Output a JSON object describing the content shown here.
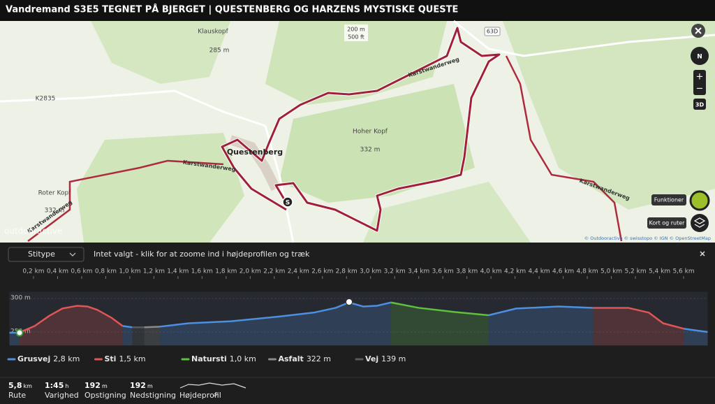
{
  "header": {
    "title": "Vandremand S3E5 TEGNET PÅ BJERGET | QUESTENBERG OG HARZENS MYSTISKE QUESTE"
  },
  "map": {
    "places": [
      "Klauskopf",
      "285 m",
      "Questenberg",
      "Hoher Kopf",
      "332 m",
      "Roter Kopf",
      "332 m"
    ],
    "trails": [
      "Karstwanderweg",
      "Karstwanderweg",
      "Karstwanderweg",
      "Karstwanderweg"
    ],
    "roads": [
      "K2835",
      "63D"
    ],
    "scale": [
      "200 m",
      "500 ft"
    ],
    "watermark": "outdooractive",
    "attribution": "© Outdooractive © swisstopo © IGN © OpenStreetMap",
    "controls": {
      "compass": "N",
      "zoom_in": "+",
      "zoom_out": "−",
      "mode": "3D",
      "functions": "Funktioner",
      "layers": "Kort og ruter"
    }
  },
  "toolbar": {
    "filter": "Stitype",
    "hint": "Intet valgt - klik for at zoome ind i højdeprofilen og træk"
  },
  "chart_data": {
    "type": "area",
    "x": [
      0,
      0.08,
      0.21,
      0.33,
      0.44,
      0.56,
      0.65,
      0.73,
      0.85,
      0.94,
      1.02,
      1.12,
      1.25,
      1.49,
      1.84,
      2.24,
      2.53,
      2.71,
      2.82,
      2.94,
      3.05,
      3.17,
      3.4,
      3.69,
      3.98,
      4.21,
      4.56,
      4.85,
      5.14,
      5.31,
      5.43,
      5.6,
      5.72,
      5.8
    ],
    "series": [
      {
        "name": "Grusvej",
        "length": "2,8 km",
        "color": "#4d8fe0",
        "values": [
          249,
          249,
          null,
          null,
          null,
          null,
          null,
          null,
          null,
          259,
          257,
          null,
          258,
          263,
          266,
          273,
          279,
          286,
          294,
          288,
          289,
          294,
          null,
          null,
          275,
          285,
          288,
          286,
          null,
          null,
          null,
          255,
          252,
          250
        ]
      },
      {
        "name": "Sti",
        "length": "1,5 km",
        "color": "#e05555",
        "values": [
          null,
          249,
          259,
          274,
          285,
          289,
          288,
          283,
          271,
          259,
          null,
          null,
          null,
          null,
          null,
          null,
          null,
          null,
          null,
          null,
          null,
          null,
          null,
          null,
          null,
          null,
          null,
          286,
          286,
          279,
          263,
          255,
          null,
          null
        ]
      },
      {
        "name": "Natursti",
        "length": "1,0 km",
        "color": "#5fbf3f",
        "values": [
          null,
          null,
          null,
          null,
          null,
          null,
          null,
          null,
          null,
          null,
          null,
          null,
          null,
          null,
          null,
          null,
          null,
          null,
          null,
          null,
          null,
          294,
          286,
          280,
          275,
          null,
          null,
          null,
          null,
          null,
          null,
          null,
          null,
          null
        ]
      },
      {
        "name": "Asfalt",
        "length": "322 m",
        "color": "#8a8a8a",
        "values": [
          null,
          null,
          null,
          null,
          null,
          null,
          null,
          null,
          null,
          null,
          null,
          257,
          258,
          null,
          null,
          null,
          null,
          null,
          null,
          null,
          null,
          null,
          null,
          null,
          null,
          null,
          null,
          null,
          null,
          null,
          null,
          null,
          null,
          null
        ]
      },
      {
        "name": "Vej",
        "length": "139 m",
        "color": "#5a5a5a",
        "values": [
          null,
          null,
          null,
          null,
          null,
          null,
          null,
          null,
          null,
          null,
          257,
          257,
          null,
          null,
          null,
          null,
          null,
          null,
          null,
          null,
          null,
          null,
          null,
          null,
          null,
          null,
          null,
          null,
          null,
          null,
          null,
          null,
          null,
          null
        ]
      }
    ],
    "xlim": [
      0,
      5.8
    ],
    "ylim": [
      230,
      310
    ],
    "xticks": [
      {
        "value": 0.2,
        "label": "0,2 km"
      },
      {
        "value": 0.4,
        "label": "0,4 km"
      },
      {
        "value": 0.6,
        "label": "0,6 km"
      },
      {
        "value": 0.8,
        "label": "0,8 km"
      },
      {
        "value": 1.0,
        "label": "1,0 km"
      },
      {
        "value": 1.2,
        "label": "1,2 km"
      },
      {
        "value": 1.4,
        "label": "1,4 km"
      },
      {
        "value": 1.6,
        "label": "1,6 km"
      },
      {
        "value": 1.8,
        "label": "1,8 km"
      },
      {
        "value": 2.0,
        "label": "2,0 km"
      },
      {
        "value": 2.2,
        "label": "2,2 km"
      },
      {
        "value": 2.4,
        "label": "2,4 km"
      },
      {
        "value": 2.6,
        "label": "2,6 km"
      },
      {
        "value": 2.8,
        "label": "2,8 km"
      },
      {
        "value": 3.0,
        "label": "3,0 km"
      },
      {
        "value": 3.2,
        "label": "3,2 km"
      },
      {
        "value": 3.4,
        "label": "3,4 km"
      },
      {
        "value": 3.6,
        "label": "3,6 km"
      },
      {
        "value": 3.8,
        "label": "3,8 km"
      },
      {
        "value": 4.0,
        "label": "4,0 km"
      },
      {
        "value": 4.2,
        "label": "4,2 km"
      },
      {
        "value": 4.4,
        "label": "4,4 km"
      },
      {
        "value": 4.6,
        "label": "4,6 km"
      },
      {
        "value": 4.8,
        "label": "4,8 km"
      },
      {
        "value": 5.0,
        "label": "5,0 km"
      },
      {
        "value": 5.2,
        "label": "5,2 km"
      },
      {
        "value": 5.4,
        "label": "5,4 km"
      },
      {
        "value": 5.6,
        "label": "5,6 km"
      }
    ],
    "yticks": [
      {
        "value": 250,
        "label": "250 m"
      },
      {
        "value": 300,
        "label": "300 m"
      }
    ]
  },
  "stats": [
    {
      "value": "5,8",
      "unit": "km",
      "label": "Rute"
    },
    {
      "value": "1:45",
      "unit": "h",
      "label": "Varighed"
    },
    {
      "value": "192",
      "unit": "m",
      "label": "Opstigning"
    },
    {
      "value": "192",
      "unit": "m",
      "label": "Nedstigning"
    }
  ],
  "profile_toggle": "Højdeprofil"
}
